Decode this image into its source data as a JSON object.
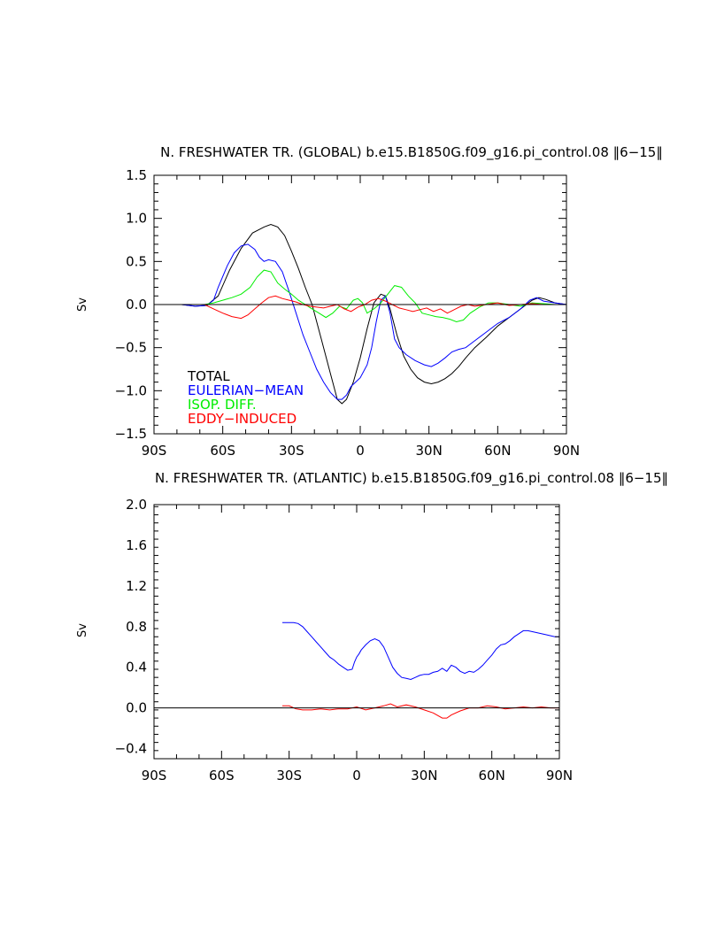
{
  "chart_data": [
    {
      "type": "line",
      "title": "N. FRESHWATER TR. (GLOBAL) b.e15.B1850G.f09_g16.pi_control.08 ‖6−15‖",
      "ylabel": "Sv",
      "xlim": [
        -90,
        90
      ],
      "ylim": [
        -1.5,
        1.5
      ],
      "xticks": [
        -90,
        -60,
        -30,
        0,
        30,
        60,
        90
      ],
      "xtick_labels": [
        "90S",
        "60S",
        "30S",
        "0",
        "30N",
        "60N",
        "90N"
      ],
      "yticks": [
        -1.5,
        -1.0,
        -0.5,
        0.0,
        0.5,
        1.0,
        1.5
      ],
      "ytick_labels": [
        "−1.5",
        "−1.0",
        "−0.5",
        "0.0",
        "0.5",
        "1.0",
        "1.5"
      ],
      "zero_line": true,
      "legend": {
        "placement": "lower-left",
        "entries": [
          {
            "label": "TOTAL",
            "color": "#000000"
          },
          {
            "label": "EULERIAN−MEAN",
            "color": "#0000ff"
          },
          {
            "label": "ISOP. DIFF.",
            "color": "#00ee00"
          },
          {
            "label": "EDDY−INDUCED",
            "color": "#ff0000"
          }
        ]
      },
      "series": [
        {
          "name": "TOTAL",
          "color": "#000000",
          "x": [
            -78,
            -72,
            -67,
            -62,
            -57,
            -52,
            -47,
            -42,
            -39,
            -36,
            -33,
            -30,
            -27,
            -24,
            -21,
            -17,
            -13,
            -10,
            -8,
            -6,
            -3,
            0,
            3,
            6,
            9,
            11,
            13,
            16,
            19,
            22,
            25,
            28,
            31,
            34,
            37,
            40,
            43,
            46,
            50,
            55,
            60,
            65,
            70,
            75,
            78,
            81,
            85,
            90
          ],
          "y": [
            0.0,
            -0.02,
            -0.01,
            0.1,
            0.4,
            0.65,
            0.83,
            0.9,
            0.93,
            0.9,
            0.8,
            0.62,
            0.42,
            0.2,
            0.0,
            -0.4,
            -0.8,
            -1.1,
            -1.15,
            -1.1,
            -0.9,
            -0.62,
            -0.28,
            0.02,
            0.12,
            0.1,
            -0.05,
            -0.35,
            -0.6,
            -0.75,
            -0.85,
            -0.9,
            -0.92,
            -0.9,
            -0.86,
            -0.8,
            -0.72,
            -0.62,
            -0.5,
            -0.38,
            -0.25,
            -0.15,
            -0.05,
            0.05,
            0.08,
            0.06,
            0.02,
            0.0
          ]
        },
        {
          "name": "EULERIAN−MEAN",
          "color": "#0000ff",
          "x": [
            -78,
            -72,
            -67,
            -64,
            -62,
            -58,
            -55,
            -52,
            -49,
            -46,
            -44,
            -42,
            -40,
            -37,
            -34,
            -31,
            -28,
            -25,
            -22,
            -19,
            -16,
            -13,
            -10,
            -8,
            -6,
            -4,
            -2,
            0,
            3,
            5,
            7,
            9,
            11,
            13,
            15,
            17,
            20,
            24,
            28,
            31,
            34,
            37,
            40,
            43,
            46,
            50,
            55,
            60,
            65,
            70,
            74,
            77,
            80,
            85,
            90
          ],
          "y": [
            0.0,
            -0.02,
            -0.01,
            0.05,
            0.2,
            0.45,
            0.6,
            0.68,
            0.7,
            0.64,
            0.55,
            0.5,
            0.52,
            0.5,
            0.38,
            0.15,
            -0.1,
            -0.35,
            -0.55,
            -0.75,
            -0.9,
            -1.02,
            -1.1,
            -1.1,
            -1.05,
            -0.95,
            -0.9,
            -0.85,
            -0.7,
            -0.5,
            -0.2,
            0.05,
            0.1,
            -0.1,
            -0.4,
            -0.5,
            -0.58,
            -0.65,
            -0.7,
            -0.72,
            -0.68,
            -0.62,
            -0.55,
            -0.52,
            -0.5,
            -0.42,
            -0.32,
            -0.22,
            -0.15,
            -0.05,
            0.05,
            0.08,
            0.04,
            0.02,
            0.0
          ]
        },
        {
          "name": "ISOP. DIFF.",
          "color": "#00ee00",
          "x": [
            -68,
            -64,
            -60,
            -56,
            -52,
            -48,
            -45,
            -42,
            -39,
            -36,
            -33,
            -30,
            -27,
            -24,
            -21,
            -18,
            -15,
            -12,
            -9,
            -6,
            -3,
            -1,
            1,
            3,
            6,
            9,
            12,
            15,
            18,
            21,
            24,
            27,
            30,
            33,
            36,
            39,
            42,
            45,
            48,
            52,
            56,
            60,
            65,
            70,
            75,
            80,
            85,
            90
          ],
          "y": [
            0.0,
            0.02,
            0.05,
            0.08,
            0.12,
            0.2,
            0.32,
            0.4,
            0.38,
            0.25,
            0.18,
            0.12,
            0.05,
            0.0,
            -0.05,
            -0.1,
            -0.15,
            -0.1,
            -0.02,
            -0.05,
            0.05,
            0.07,
            0.02,
            -0.1,
            -0.05,
            0.02,
            0.12,
            0.22,
            0.2,
            0.1,
            0.02,
            -0.1,
            -0.12,
            -0.14,
            -0.15,
            -0.17,
            -0.2,
            -0.18,
            -0.1,
            -0.03,
            0.02,
            0.02,
            0.0,
            -0.02,
            0.02,
            0.01,
            0.0,
            0.0
          ]
        },
        {
          "name": "EDDY−INDUCED",
          "color": "#ff0000",
          "x": [
            -68,
            -64,
            -60,
            -56,
            -52,
            -49,
            -46,
            -43,
            -40,
            -37,
            -34,
            -31,
            -28,
            -25,
            -22,
            -19,
            -16,
            -13,
            -10,
            -7,
            -4,
            -1,
            2,
            5,
            8,
            11,
            14,
            17,
            20,
            23,
            26,
            29,
            32,
            35,
            38,
            41,
            44,
            47,
            50,
            55,
            60,
            65,
            70,
            75,
            80,
            85,
            90
          ],
          "y": [
            0.0,
            -0.05,
            -0.1,
            -0.14,
            -0.16,
            -0.12,
            -0.05,
            0.02,
            0.08,
            0.1,
            0.07,
            0.05,
            0.03,
            0.0,
            -0.02,
            -0.03,
            -0.04,
            -0.02,
            0.0,
            -0.05,
            -0.08,
            -0.03,
            0.0,
            0.05,
            0.07,
            0.04,
            0.0,
            -0.04,
            -0.06,
            -0.08,
            -0.06,
            -0.04,
            -0.08,
            -0.05,
            -0.1,
            -0.06,
            -0.02,
            0.0,
            -0.02,
            0.0,
            0.02,
            -0.01,
            0.0,
            0.01,
            0.0,
            0.0,
            0.0
          ]
        }
      ]
    },
    {
      "type": "line",
      "title": "N. FRESHWATER TR. (ATLANTIC) b.e15.B1850G.f09_g16.pi_control.08 ‖6−15‖",
      "ylabel": "Sv",
      "xlim": [
        -90,
        90
      ],
      "ylim": [
        -0.5,
        2.0
      ],
      "xticks": [
        -90,
        -60,
        -30,
        0,
        30,
        60,
        90
      ],
      "xtick_labels": [
        "90S",
        "60S",
        "30S",
        "0",
        "30N",
        "60N",
        "90N"
      ],
      "yticks": [
        -0.4,
        0.0,
        0.4,
        0.8,
        1.2,
        1.6,
        2.0
      ],
      "ytick_labels": [
        "−0.4",
        "0.0",
        "0.4",
        "0.8",
        "1.2",
        "1.6",
        "2.0"
      ],
      "zero_line": true,
      "series": [
        {
          "color": "#0000ff",
          "x": [
            -33,
            -30,
            -28,
            -26,
            -24,
            -22,
            -20,
            -18,
            -16,
            -14,
            -12,
            -10,
            -8,
            -6,
            -4,
            -2,
            -1,
            0,
            1,
            2,
            4,
            6,
            8,
            10,
            12,
            14,
            16,
            18,
            20,
            22,
            24,
            26,
            28,
            30,
            32,
            34,
            36,
            38,
            40,
            42,
            44,
            46,
            48,
            50,
            52,
            54,
            56,
            58,
            60,
            62,
            64,
            66,
            68,
            70,
            72,
            74,
            76,
            78,
            80,
            84,
            88,
            90
          ],
          "y": [
            0.84,
            0.84,
            0.84,
            0.83,
            0.8,
            0.75,
            0.7,
            0.65,
            0.6,
            0.55,
            0.5,
            0.47,
            0.43,
            0.4,
            0.37,
            0.38,
            0.45,
            0.5,
            0.53,
            0.57,
            0.62,
            0.66,
            0.68,
            0.66,
            0.6,
            0.5,
            0.4,
            0.34,
            0.3,
            0.29,
            0.28,
            0.3,
            0.32,
            0.33,
            0.33,
            0.35,
            0.36,
            0.39,
            0.36,
            0.42,
            0.4,
            0.36,
            0.34,
            0.36,
            0.35,
            0.38,
            0.42,
            0.47,
            0.52,
            0.58,
            0.62,
            0.63,
            0.66,
            0.7,
            0.73,
            0.76,
            0.76,
            0.75,
            0.74,
            0.72,
            0.7,
            0.7
          ]
        },
        {
          "color": "#ff0000",
          "x": [
            -33,
            -30,
            -27,
            -24,
            -20,
            -16,
            -12,
            -8,
            -4,
            0,
            4,
            8,
            12,
            15,
            18,
            22,
            26,
            30,
            34,
            38,
            40,
            42,
            46,
            50,
            54,
            58,
            62,
            66,
            70,
            74,
            78,
            82,
            86,
            90
          ],
          "y": [
            0.02,
            0.02,
            -0.01,
            -0.02,
            -0.02,
            -0.01,
            -0.02,
            -0.01,
            -0.01,
            0.01,
            -0.02,
            0.0,
            0.02,
            0.04,
            0.01,
            0.03,
            0.01,
            -0.02,
            -0.05,
            -0.1,
            -0.1,
            -0.07,
            -0.03,
            0.0,
            0.0,
            0.02,
            0.01,
            -0.01,
            0.0,
            0.01,
            0.0,
            0.01,
            0.0,
            0.0
          ]
        }
      ]
    }
  ]
}
